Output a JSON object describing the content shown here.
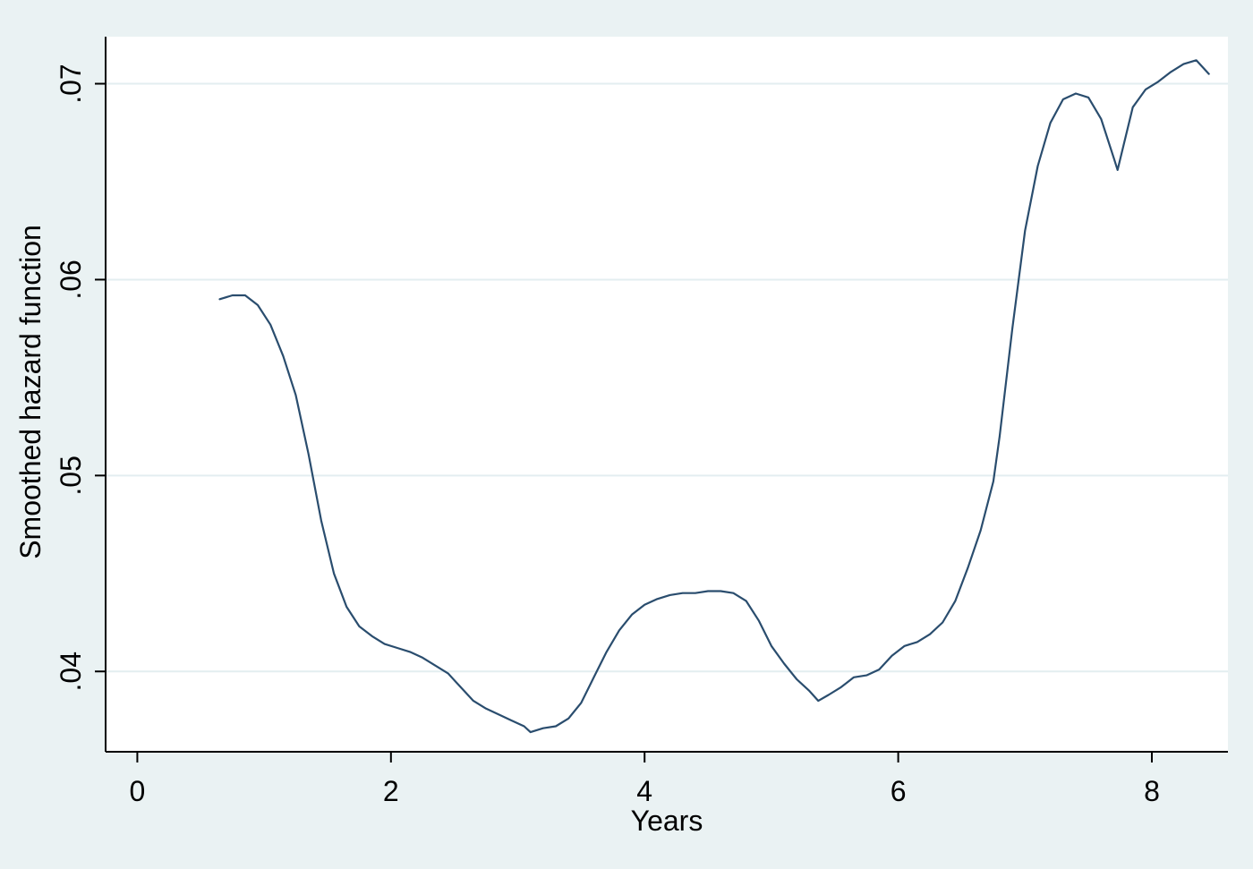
{
  "chart_data": {
    "type": "line",
    "title": "",
    "xlabel": "Years",
    "ylabel": "Smoothed hazard function",
    "xlim": [
      -0.25,
      8.6
    ],
    "ylim": [
      0.0359,
      0.0724
    ],
    "xticks": [
      0,
      2,
      4,
      6,
      8
    ],
    "xtick_labels": [
      "0",
      "2",
      "4",
      "6",
      "8"
    ],
    "yticks": [
      0.04,
      0.05,
      0.06,
      0.07
    ],
    "ytick_labels": [
      ".04",
      ".05",
      ".06",
      ".07"
    ],
    "grid": "horizontal",
    "legend": "none",
    "series": [
      {
        "color": "#2a4d6e",
        "points": [
          [
            0.65,
            0.059
          ],
          [
            0.75,
            0.0592
          ],
          [
            0.85,
            0.0592
          ],
          [
            0.95,
            0.0587
          ],
          [
            1.05,
            0.0577
          ],
          [
            1.15,
            0.0561
          ],
          [
            1.25,
            0.0541
          ],
          [
            1.35,
            0.0511
          ],
          [
            1.45,
            0.0477
          ],
          [
            1.55,
            0.045
          ],
          [
            1.65,
            0.0433
          ],
          [
            1.75,
            0.0423
          ],
          [
            1.85,
            0.0418
          ],
          [
            1.95,
            0.0414
          ],
          [
            2.05,
            0.0412
          ],
          [
            2.15,
            0.041
          ],
          [
            2.25,
            0.0407
          ],
          [
            2.35,
            0.0403
          ],
          [
            2.45,
            0.0399
          ],
          [
            2.55,
            0.0392
          ],
          [
            2.65,
            0.0385
          ],
          [
            2.75,
            0.0381
          ],
          [
            2.85,
            0.0378
          ],
          [
            2.95,
            0.0375
          ],
          [
            3.05,
            0.0372
          ],
          [
            3.1,
            0.0369
          ],
          [
            3.2,
            0.0371
          ],
          [
            3.3,
            0.0372
          ],
          [
            3.4,
            0.0376
          ],
          [
            3.5,
            0.0384
          ],
          [
            3.6,
            0.0397
          ],
          [
            3.7,
            0.041
          ],
          [
            3.8,
            0.0421
          ],
          [
            3.9,
            0.0429
          ],
          [
            4.0,
            0.0434
          ],
          [
            4.1,
            0.0437
          ],
          [
            4.2,
            0.0439
          ],
          [
            4.3,
            0.044
          ],
          [
            4.4,
            0.044
          ],
          [
            4.5,
            0.0441
          ],
          [
            4.6,
            0.0441
          ],
          [
            4.7,
            0.044
          ],
          [
            4.8,
            0.0436
          ],
          [
            4.9,
            0.0426
          ],
          [
            5.0,
            0.0413
          ],
          [
            5.1,
            0.0404
          ],
          [
            5.2,
            0.0396
          ],
          [
            5.3,
            0.039
          ],
          [
            5.37,
            0.0385
          ],
          [
            5.45,
            0.0388
          ],
          [
            5.55,
            0.0392
          ],
          [
            5.65,
            0.0397
          ],
          [
            5.75,
            0.0398
          ],
          [
            5.85,
            0.0401
          ],
          [
            5.95,
            0.0408
          ],
          [
            6.05,
            0.0413
          ],
          [
            6.15,
            0.0415
          ],
          [
            6.25,
            0.0419
          ],
          [
            6.35,
            0.0425
          ],
          [
            6.45,
            0.0436
          ],
          [
            6.55,
            0.0453
          ],
          [
            6.65,
            0.0472
          ],
          [
            6.75,
            0.0497
          ],
          [
            6.8,
            0.052
          ],
          [
            6.9,
            0.0575
          ],
          [
            7.0,
            0.0625
          ],
          [
            7.1,
            0.0658
          ],
          [
            7.2,
            0.068
          ],
          [
            7.3,
            0.0692
          ],
          [
            7.4,
            0.0695
          ],
          [
            7.5,
            0.0693
          ],
          [
            7.6,
            0.0682
          ],
          [
            7.7,
            0.0662
          ],
          [
            7.73,
            0.0656
          ],
          [
            7.85,
            0.0688
          ],
          [
            7.95,
            0.0697
          ],
          [
            8.05,
            0.0701
          ],
          [
            8.15,
            0.0706
          ],
          [
            8.25,
            0.071
          ],
          [
            8.35,
            0.0712
          ],
          [
            8.45,
            0.0705
          ]
        ]
      }
    ]
  }
}
